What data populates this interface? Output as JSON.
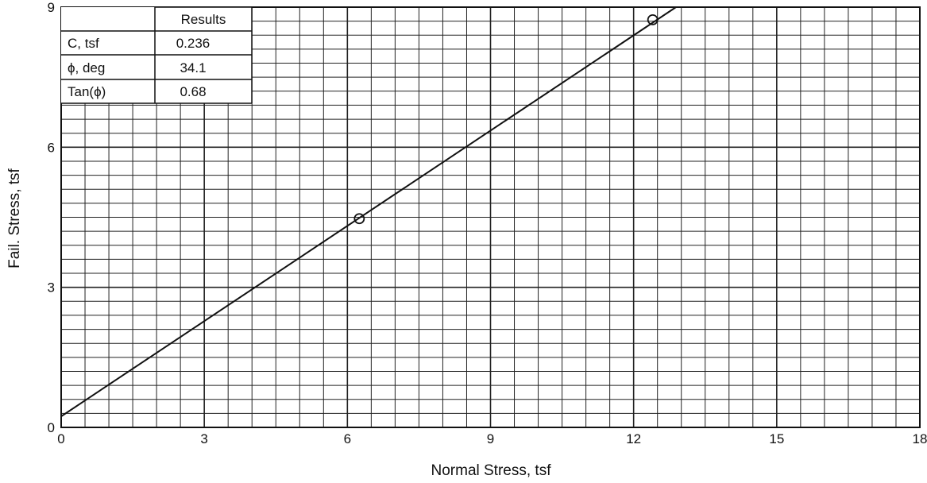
{
  "chart_data": {
    "type": "scatter",
    "xlabel": "Normal Stress, tsf",
    "ylabel": "Fail. Stress, tsf",
    "xlim": [
      0,
      18
    ],
    "ylim": [
      0,
      9
    ],
    "x_ticks": [
      "0",
      "3",
      "6",
      "9",
      "12",
      "15",
      "18"
    ],
    "y_ticks": [
      "0",
      "3",
      "6",
      "9"
    ],
    "grid": true,
    "series": [
      {
        "points": [
          {
            "x": 6.25,
            "y": 4.47
          },
          {
            "x": 12.4,
            "y": 8.73
          }
        ]
      }
    ],
    "fit_line": {
      "intercept": 0.236,
      "slope": 0.68
    }
  },
  "results_table": {
    "header": "Results",
    "rows": [
      {
        "label": "C, tsf",
        "value": "0.236"
      },
      {
        "label": "ϕ, deg",
        "value": "34.1"
      },
      {
        "label": "Tan(ϕ)",
        "value": "0.68"
      }
    ]
  },
  "colors": {
    "line": "#111111",
    "grid": "#222222",
    "background": "#ffffff"
  }
}
